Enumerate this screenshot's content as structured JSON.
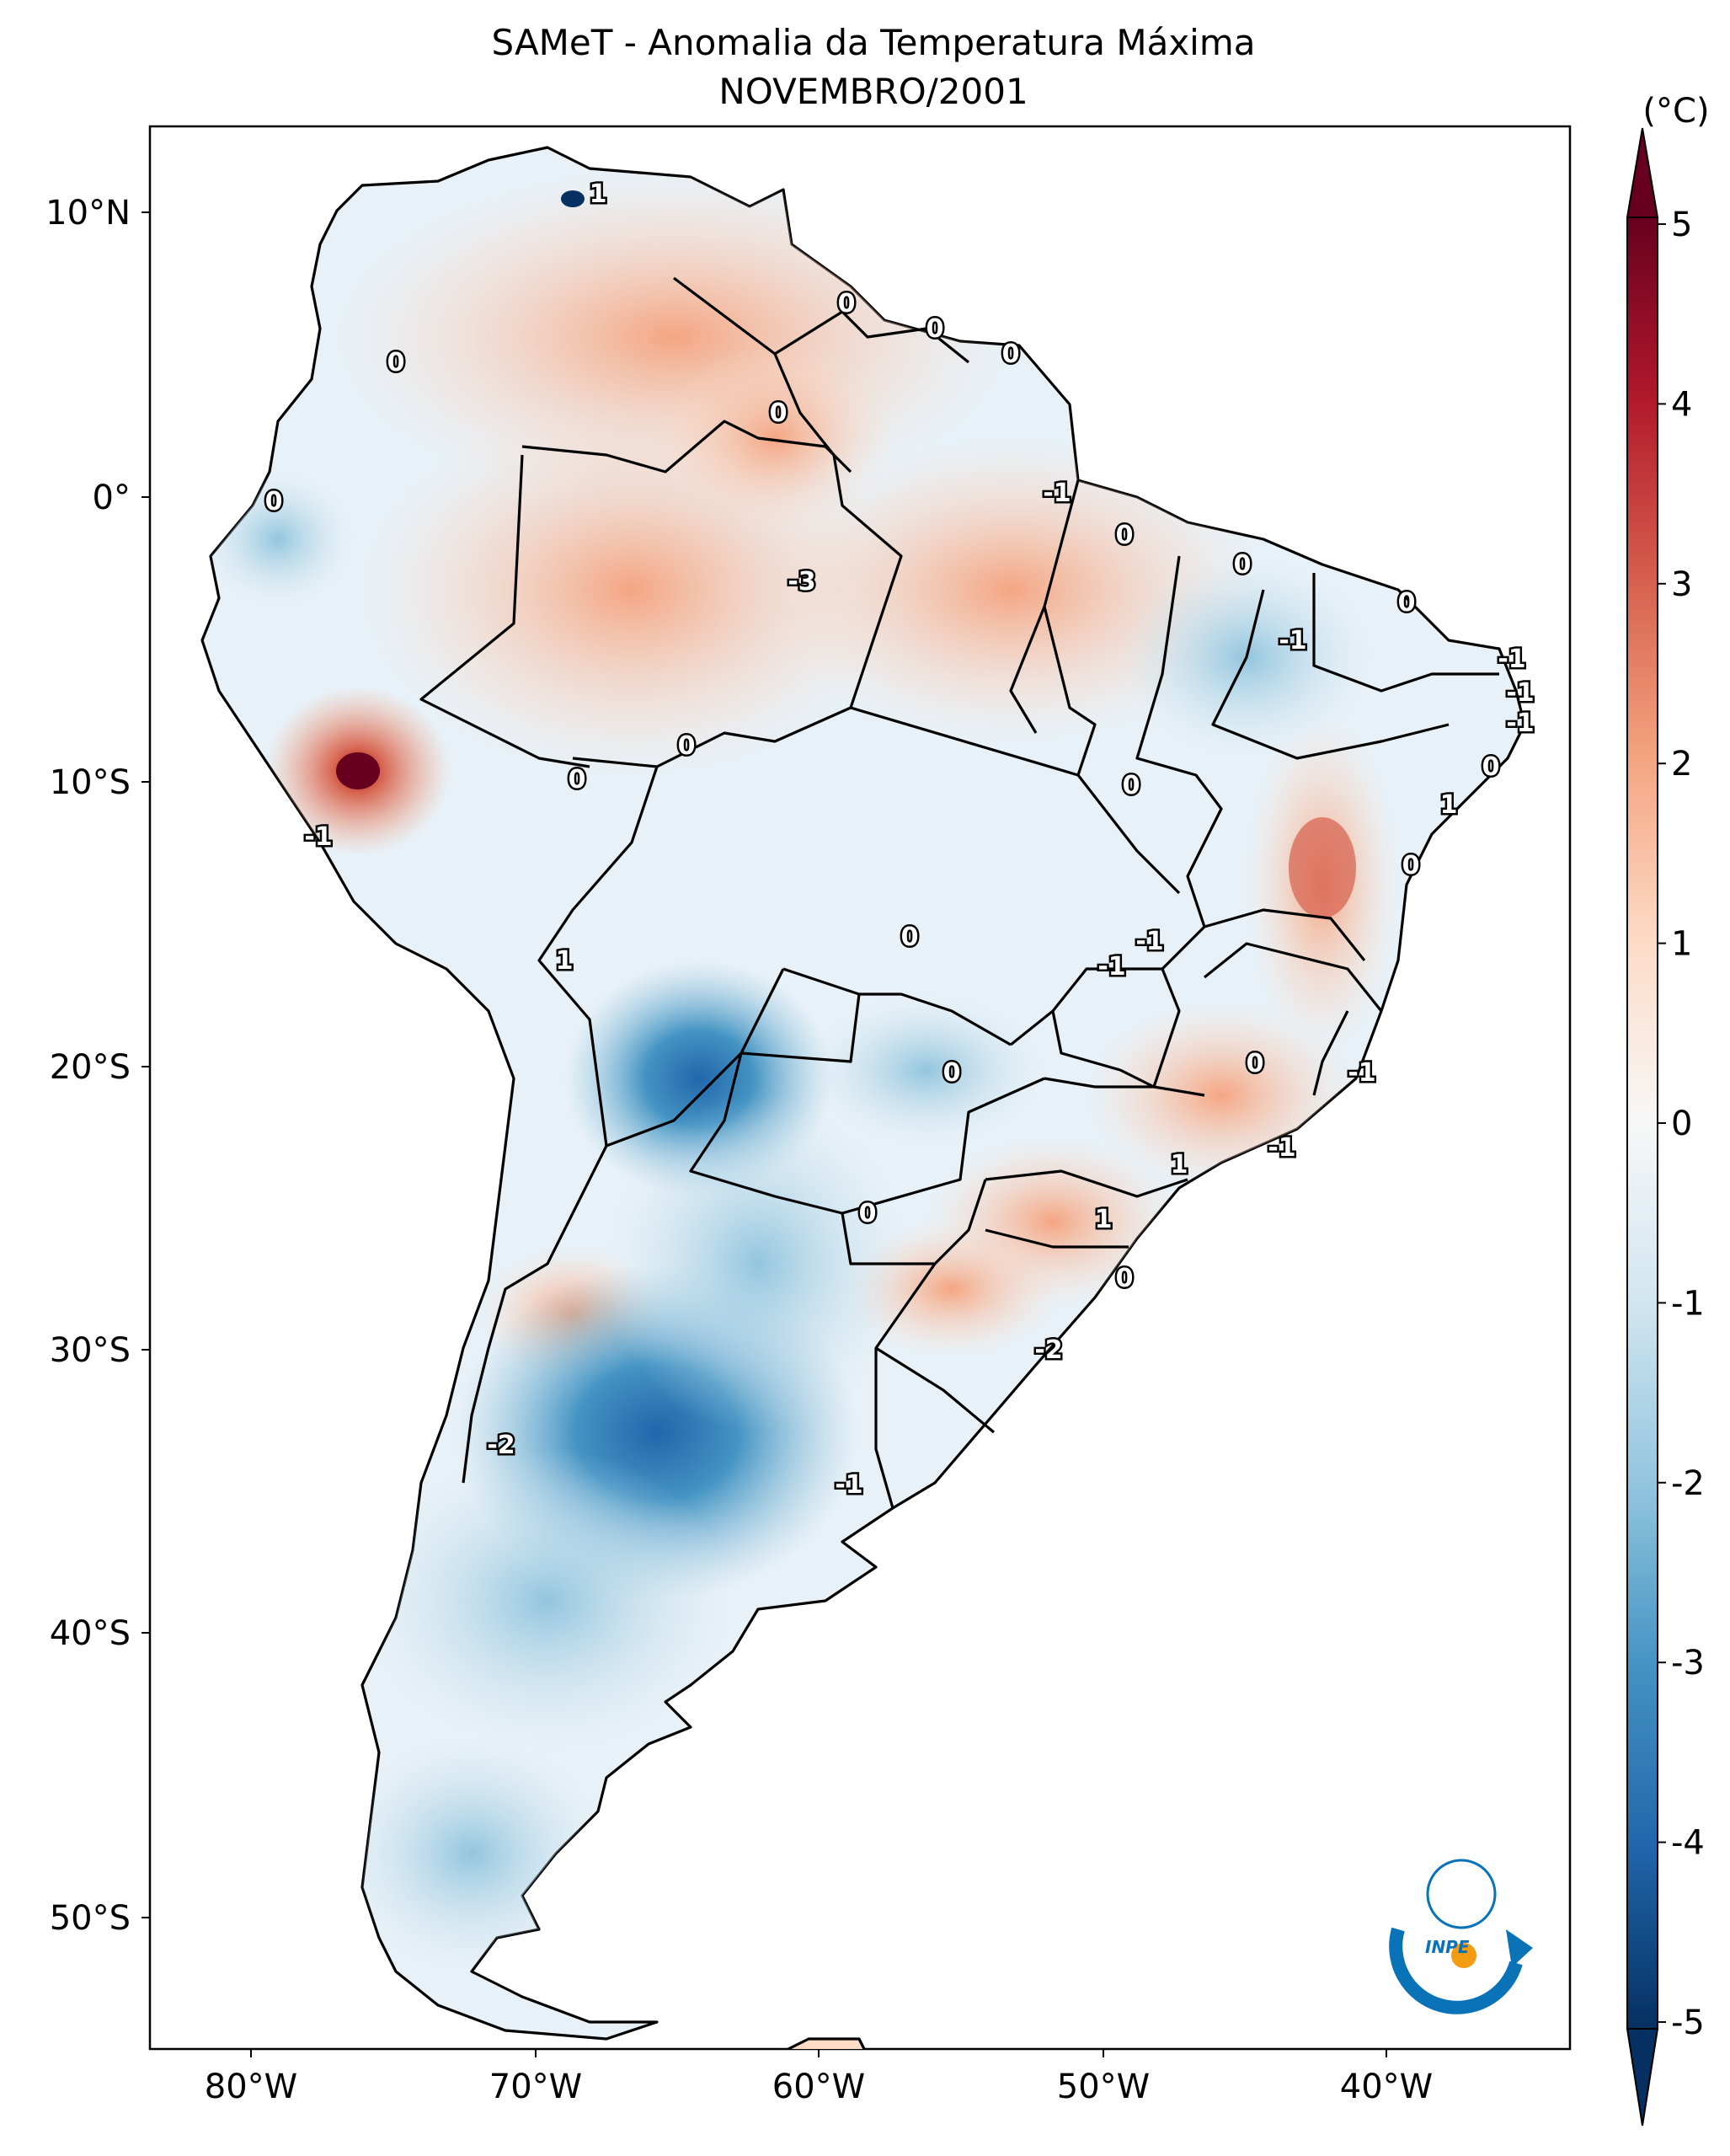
{
  "figure": {
    "title_line1": "SAMeT - Anomalia da Temperatura Máxima",
    "title_line2": "NOVEMBRO/2001",
    "colorbar_unit": "(°C)",
    "logo_text": "INPE"
  },
  "axes": {
    "lon_labels": [
      "80°W",
      "70°W",
      "60°W",
      "50°W",
      "40°W"
    ],
    "lat_labels": [
      "10°N",
      "0°",
      "10°S",
      "20°S",
      "30°S",
      "40°S",
      "50°S"
    ]
  },
  "colorbar": {
    "ticks": [
      "5",
      "4",
      "3",
      "2",
      "1",
      "0",
      "-1",
      "-2",
      "-3",
      "-4",
      "-5"
    ],
    "colors": [
      "#67001f",
      "#b2182b",
      "#d6604d",
      "#f4a582",
      "#fddbc7",
      "#f7f7f7",
      "#d1e5f0",
      "#92c5de",
      "#4393c3",
      "#2166ac",
      "#053061"
    ]
  },
  "contour_labels": [
    {
      "text": "1"
    },
    {
      "text": "0"
    },
    {
      "text": "0"
    },
    {
      "text": "0"
    },
    {
      "text": "0"
    },
    {
      "text": "0"
    },
    {
      "text": "0"
    },
    {
      "text": "-1"
    },
    {
      "text": "0"
    },
    {
      "text": "-3"
    },
    {
      "text": "0"
    },
    {
      "text": "-1"
    },
    {
      "text": "0"
    },
    {
      "text": "-1"
    },
    {
      "text": "-1"
    },
    {
      "text": "-1"
    },
    {
      "text": "0"
    },
    {
      "text": "0"
    },
    {
      "text": "0"
    },
    {
      "text": "1"
    },
    {
      "text": "0"
    },
    {
      "text": "-1"
    },
    {
      "text": "1"
    },
    {
      "text": "0"
    },
    {
      "text": "-1"
    },
    {
      "text": "-1"
    },
    {
      "text": "0"
    },
    {
      "text": "0"
    },
    {
      "text": "-1"
    },
    {
      "text": "1"
    },
    {
      "text": "-1"
    },
    {
      "text": "0"
    },
    {
      "text": "1"
    },
    {
      "text": "0"
    },
    {
      "text": "0"
    },
    {
      "text": "-2"
    },
    {
      "text": "-2"
    },
    {
      "text": "-1"
    }
  ]
}
